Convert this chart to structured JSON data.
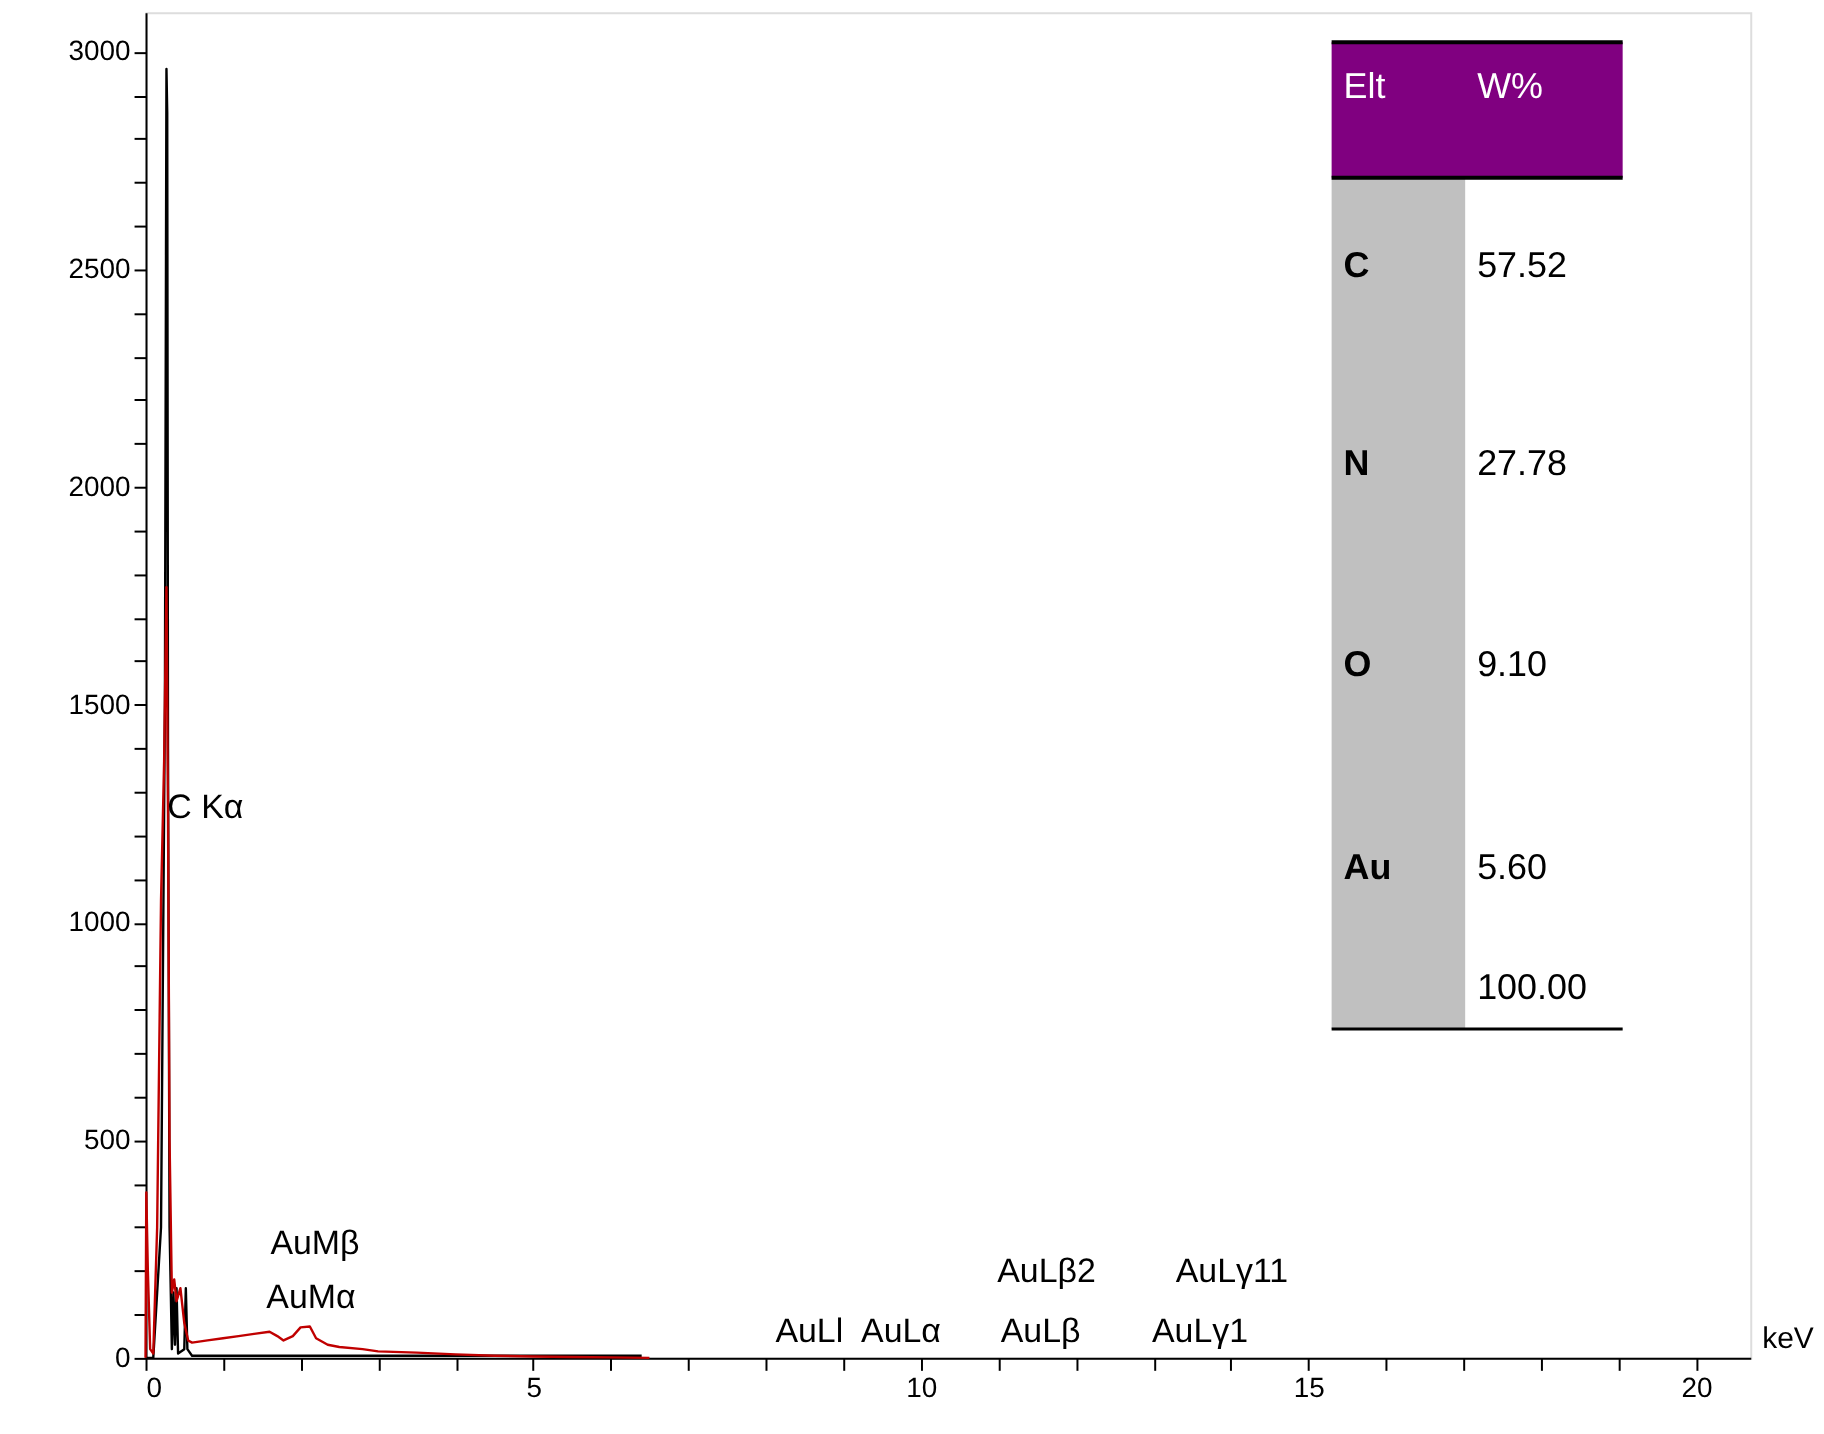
{
  "chart_data": {
    "type": "line",
    "xlabel": "keV",
    "xlim": [
      0,
      20.7
    ],
    "ylim": [
      0,
      3090
    ],
    "xticks": [
      0,
      {
        "value": 1,
        "label": null
      },
      {
        "value": 2,
        "label": null
      },
      {
        "value": 3,
        "label": null
      },
      {
        "value": 4,
        "label": null
      },
      5,
      {
        "value": 6,
        "label": null
      },
      {
        "value": 7,
        "label": null
      },
      {
        "value": 8,
        "label": null
      },
      {
        "value": 9,
        "label": null
      },
      10,
      {
        "value": 11,
        "label": null
      },
      {
        "value": 12,
        "label": null
      },
      {
        "value": 13,
        "label": null
      },
      {
        "value": 14,
        "label": null
      },
      15,
      {
        "value": 16,
        "label": null
      },
      {
        "value": 17,
        "label": null
      },
      {
        "value": 18,
        "label": null
      },
      {
        "value": 19,
        "label": null
      },
      20
    ],
    "yticks": [
      0,
      {
        "value": 100,
        "label": null
      },
      {
        "value": 200,
        "label": null
      },
      {
        "value": 300,
        "label": null
      },
      {
        "value": 400,
        "label": null
      },
      500,
      {
        "value": 600,
        "label": null
      },
      {
        "value": 700,
        "label": null
      },
      {
        "value": 800,
        "label": null
      },
      {
        "value": 900,
        "label": null
      },
      1000,
      {
        "value": 1100,
        "label": null
      },
      {
        "value": 1200,
        "label": null
      },
      {
        "value": 1300,
        "label": null
      },
      {
        "value": 1400,
        "label": null
      },
      1500,
      {
        "value": 1600,
        "label": null
      },
      {
        "value": 1700,
        "label": null
      },
      {
        "value": 1800,
        "label": null
      },
      {
        "value": 1900,
        "label": null
      },
      2000,
      {
        "value": 2100,
        "label": null
      },
      {
        "value": 2200,
        "label": null
      },
      {
        "value": 2300,
        "label": null
      },
      {
        "value": 2400,
        "label": null
      },
      2500,
      {
        "value": 2600,
        "label": null
      },
      {
        "value": 2700,
        "label": null
      },
      {
        "value": 2800,
        "label": null
      },
      {
        "value": 2900,
        "label": null
      },
      3000
    ],
    "grid": false,
    "marker": "none",
    "line_style": "solid",
    "series": [
      {
        "color": "#000000",
        "x": [
          0,
          0.1,
          0.2,
          0.25,
          0.27,
          0.28,
          0.29,
          0.31,
          0.34,
          0.36,
          0.38,
          0.4,
          0.42,
          0.5,
          0.52,
          0.54,
          0.6,
          1.0,
          6.4
        ],
        "values": [
          0,
          0,
          300,
          1500,
          2960,
          2860,
          1400,
          300,
          20,
          150,
          30,
          160,
          10,
          20,
          160,
          20,
          5,
          5,
          5
        ]
      },
      {
        "color": "#c00000",
        "x": [
          0,
          0.01,
          0.03,
          0.06,
          0.1,
          0.15,
          0.2,
          0.24,
          0.27,
          0.29,
          0.31,
          0.34,
          0.37,
          0.4,
          0.45,
          0.5,
          0.55,
          0.6,
          0.8,
          1.0,
          1.2,
          1.4,
          1.6,
          1.7,
          1.78,
          1.9,
          2.0,
          2.12,
          2.2,
          2.35,
          2.5,
          2.8,
          3.0,
          3.5,
          4.0,
          4.5,
          5.0,
          5.5,
          6.0,
          6.5
        ],
        "values": [
          0,
          380,
          200,
          20,
          10,
          300,
          1050,
          1370,
          1770,
          1250,
          500,
          150,
          180,
          130,
          160,
          80,
          40,
          35,
          40,
          45,
          50,
          55,
          60,
          50,
          40,
          50,
          70,
          72,
          45,
          30,
          25,
          20,
          15,
          12,
          8,
          5,
          3,
          2,
          1,
          0
        ]
      }
    ],
    "annotations": [
      "C Kα",
      "AuMβ",
      "AuMα",
      "AuLl",
      "AuLα",
      "AuLβ2",
      "AuLβ",
      "AuLγ11",
      "AuLγ1",
      "Elt",
      "W%",
      "C",
      "57.52",
      "N",
      "27.78",
      "O",
      "9.10",
      "Au",
      "5.60",
      "100.00"
    ]
  }
}
